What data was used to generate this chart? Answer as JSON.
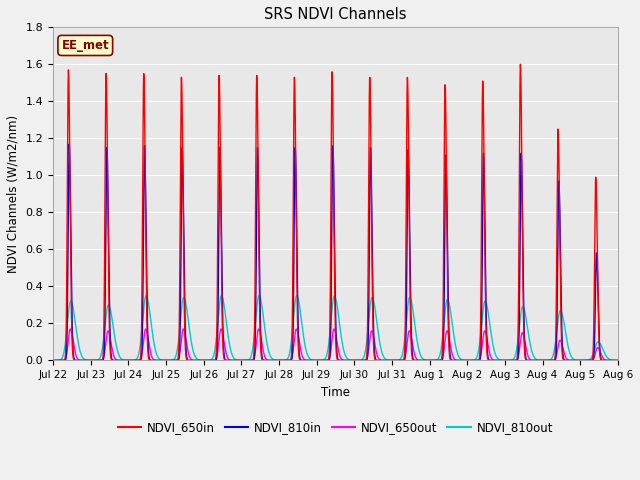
{
  "title": "SRS NDVI Channels",
  "ylabel": "NDVI Channels (W/m2/nm)",
  "xlabel": "Time",
  "annotation": "EE_met",
  "ylim": [
    0.0,
    1.8
  ],
  "fig_facecolor": "#f0f0f0",
  "plot_bg_color": "#e8e8e8",
  "series": {
    "NDVI_650in": {
      "color": "#ff0000",
      "lw": 1.0
    },
    "NDVI_810in": {
      "color": "#0000dd",
      "lw": 1.0
    },
    "NDVI_650out": {
      "color": "#ff00ff",
      "lw": 1.0
    },
    "NDVI_810out": {
      "color": "#00cccc",
      "lw": 1.0
    }
  },
  "n_peaks": 15,
  "peak_heights_650in": [
    1.57,
    1.55,
    1.55,
    1.53,
    1.54,
    1.54,
    1.53,
    1.56,
    1.53,
    1.53,
    1.49,
    1.51,
    1.6,
    1.25,
    0.99
  ],
  "peak_heights_810in": [
    1.17,
    1.15,
    1.16,
    1.15,
    1.15,
    1.15,
    1.15,
    1.16,
    1.15,
    1.14,
    1.11,
    1.12,
    1.12,
    0.97,
    0.58
  ],
  "peak_heights_650out": [
    0.17,
    0.16,
    0.17,
    0.17,
    0.17,
    0.17,
    0.17,
    0.17,
    0.16,
    0.16,
    0.16,
    0.16,
    0.15,
    0.11,
    0.07
  ],
  "peak_heights_810out": [
    0.32,
    0.3,
    0.35,
    0.34,
    0.35,
    0.35,
    0.35,
    0.35,
    0.34,
    0.34,
    0.33,
    0.32,
    0.29,
    0.27,
    0.1
  ],
  "tick_labels": [
    "Jul 22",
    "Jul 23",
    "Jul 24",
    "Jul 25",
    "Jul 26",
    "Jul 27",
    "Jul 28",
    "Jul 29",
    "Jul 30",
    "Jul 31",
    "Aug 1",
    "Aug 2",
    "Aug 3",
    "Aug 4",
    "Aug 5",
    "Aug 6"
  ],
  "n_ticks": 16
}
